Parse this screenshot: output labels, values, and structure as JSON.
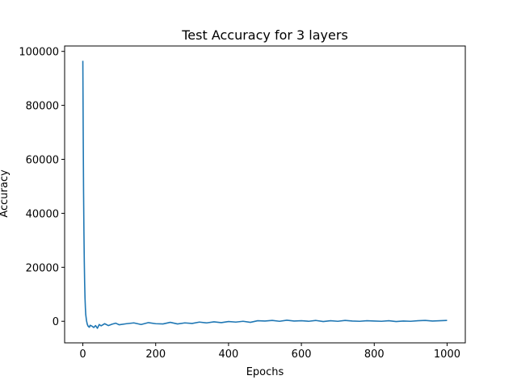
{
  "chart_data": {
    "type": "line",
    "title": "Test Accuracy for 3 layers",
    "xlabel": "Epochs",
    "ylabel": "Accuracy",
    "xlim": [
      -50,
      1050
    ],
    "ylim": [
      -8000,
      102000
    ],
    "xticks": [
      0,
      200,
      400,
      600,
      800,
      1000
    ],
    "yticks": [
      0,
      20000,
      40000,
      60000,
      80000,
      100000
    ],
    "xtick_labels": [
      "0",
      "200",
      "400",
      "600",
      "800",
      "1000"
    ],
    "ytick_labels": [
      "0",
      "20000",
      "40000",
      "60000",
      "80000",
      "100000"
    ],
    "grid": false,
    "legend": "none",
    "colors": {
      "line": "#1f77b4"
    },
    "series": [
      {
        "x": [
          0,
          1,
          2,
          3,
          4,
          5,
          6,
          7,
          8,
          10,
          12,
          14,
          16,
          18,
          20,
          25,
          30,
          35,
          40,
          45,
          50,
          60,
          70,
          80,
          90,
          100,
          120,
          140,
          160,
          180,
          200,
          220,
          240,
          260,
          280,
          300,
          320,
          340,
          360,
          380,
          400,
          420,
          440,
          460,
          480,
          500,
          520,
          540,
          560,
          580,
          600,
          620,
          640,
          660,
          680,
          700,
          720,
          740,
          760,
          780,
          800,
          820,
          840,
          860,
          880,
          900,
          920,
          940,
          960,
          980,
          1000
        ],
        "values": [
          96500,
          70000,
          48000,
          33000,
          22000,
          14000,
          8500,
          5000,
          2500,
          300,
          -1000,
          -1700,
          -2000,
          -2200,
          -1500,
          -1800,
          -2300,
          -1600,
          -2600,
          -1200,
          -1700,
          -900,
          -1600,
          -1100,
          -700,
          -1300,
          -900,
          -600,
          -1200,
          -500,
          -900,
          -1000,
          -400,
          -1000,
          -600,
          -800,
          -300,
          -600,
          -200,
          -500,
          -100,
          -300,
          0,
          -400,
          200,
          100,
          300,
          0,
          400,
          100,
          200,
          0,
          300,
          -100,
          200,
          0,
          300,
          100,
          0,
          200,
          100,
          0,
          200,
          -100,
          100,
          0,
          200,
          300,
          100,
          200,
          300
        ]
      }
    ]
  }
}
